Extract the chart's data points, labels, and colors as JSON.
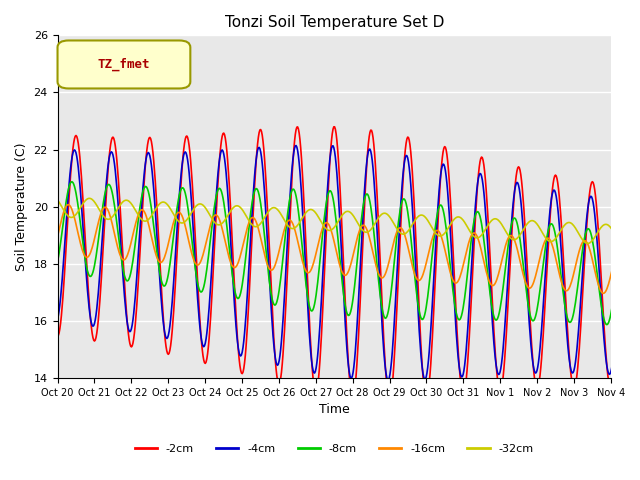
{
  "title": "Tonzi Soil Temperature Set D",
  "ylabel": "Soil Temperature (C)",
  "xlabel": "Time",
  "ylim": [
    14,
    26
  ],
  "yticks": [
    14,
    16,
    18,
    20,
    22,
    24,
    26
  ],
  "legend_label": "TZ_fmet",
  "series_labels": [
    "-2cm",
    "-4cm",
    "-8cm",
    "-16cm",
    "-32cm"
  ],
  "series_colors": [
    "#ff0000",
    "#0000cc",
    "#00cc00",
    "#ff8800",
    "#cccc00"
  ],
  "series_linewidths": [
    1.2,
    1.2,
    1.2,
    1.2,
    1.2
  ],
  "xtick_labels": [
    "Oct 20",
    "Oct 21",
    "Oct 22",
    "Oct 23",
    "Oct 24",
    "Oct 25",
    "Oct 26",
    "Oct 27",
    "Oct 28",
    "Oct 29",
    "Oct 30",
    "Oct 31",
    "Nov 1",
    "Nov 2",
    "Nov 3",
    "Nov 4"
  ],
  "background_color": "#e8e8e8",
  "plot_bg_color": "#e8e8e8",
  "fig_bg_color": "#ffffff"
}
